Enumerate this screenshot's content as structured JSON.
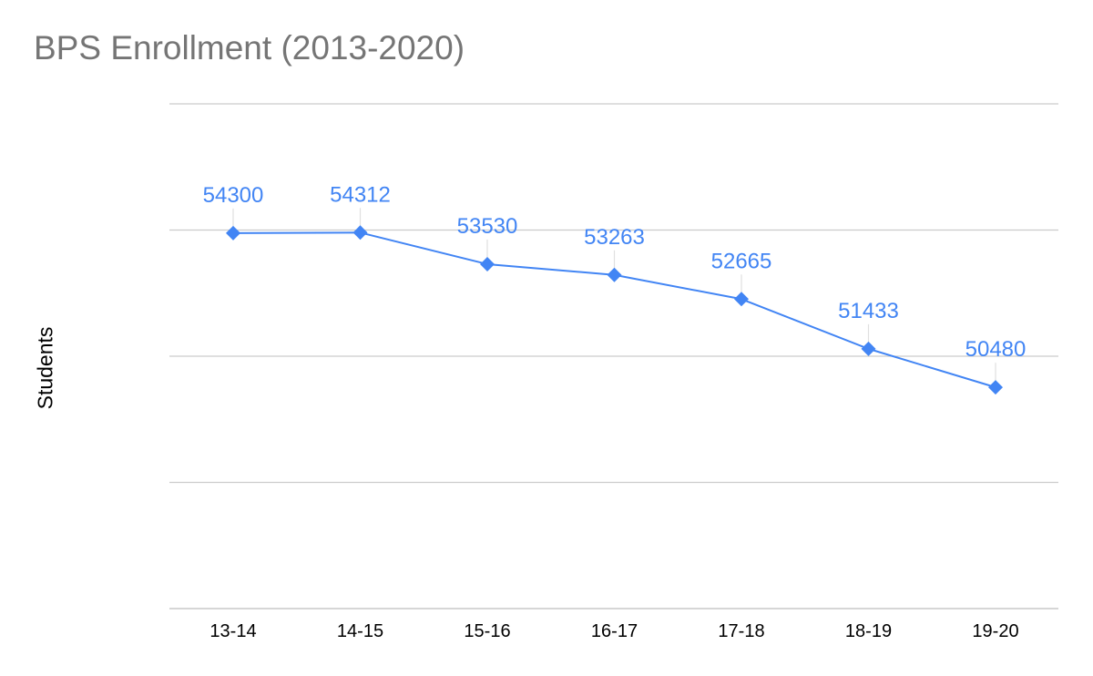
{
  "chart_data": {
    "type": "line",
    "title": "BPS Enrollment (2013-2020)",
    "xlabel": "",
    "ylabel": "Students",
    "categories": [
      "13-14",
      "14-15",
      "15-16",
      "16-17",
      "17-18",
      "18-19",
      "19-20"
    ],
    "series": [
      {
        "values": [
          54300,
          54312,
          53530,
          53263,
          52665,
          51433,
          50480
        ],
        "color": "#4285f4",
        "marker": "diamond",
        "data_labels": true
      }
    ],
    "ylim": [
      45000,
      57500
    ],
    "grid": true,
    "y_tick_labels_shown": false,
    "colors": {
      "series": "#4285f4",
      "title": "#757575",
      "grid": "#cccccc",
      "axis": "#bdbdbd"
    }
  }
}
